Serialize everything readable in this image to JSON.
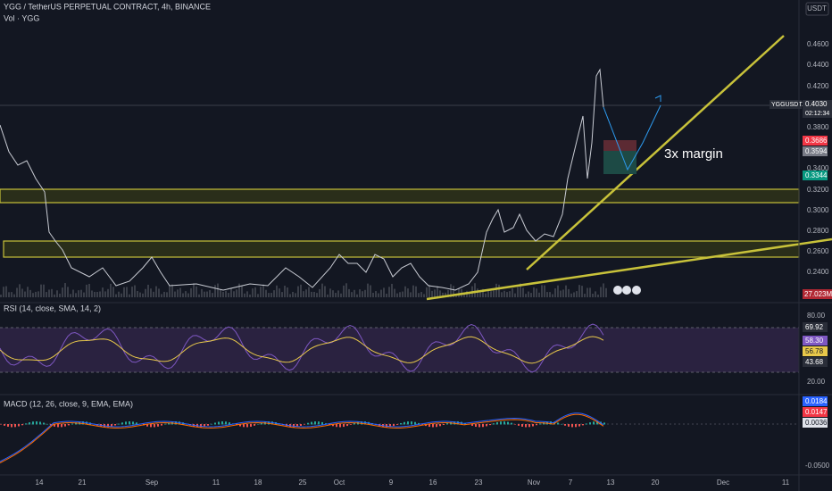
{
  "header": {
    "symbol": "YGG / TetherUS PERPETUAL CONTRACT, 4h, BINANCE",
    "volume": "Vol · YGG",
    "currency": "USDT"
  },
  "price_axis": [
    "0.4600",
    "0.4400",
    "0.4200",
    "0.3800",
    "0.3400",
    "0.3200",
    "0.3000",
    "0.2800",
    "0.2600",
    "0.2400"
  ],
  "price_tags": {
    "ticker": "YGGUSDT.P",
    "last": "0.4030",
    "countdown": "02:12:34",
    "tp": "0.3686",
    "entry": "0.3594",
    "stop": "0.3344",
    "volume": "27.023M"
  },
  "annotation": "3x margin",
  "rsi": {
    "title": "RSI (14, close, SMA, 14, 2)",
    "axis": [
      "80.00",
      "20.00"
    ],
    "tags": [
      "69.92",
      "58.30",
      "56.78",
      "43.68"
    ]
  },
  "macd": {
    "title": "MACD (12, 26, close, 9, EMA, EMA)",
    "tags": [
      "0.0184",
      "0.0147",
      "0.0036"
    ],
    "axis": [
      "-0.0500"
    ]
  },
  "time_axis": [
    "14",
    "21",
    "Sep",
    "11",
    "18",
    "25",
    "Oct",
    "9",
    "16",
    "23",
    "Nov",
    "7",
    "13",
    "20",
    "Dec",
    "11"
  ]
}
